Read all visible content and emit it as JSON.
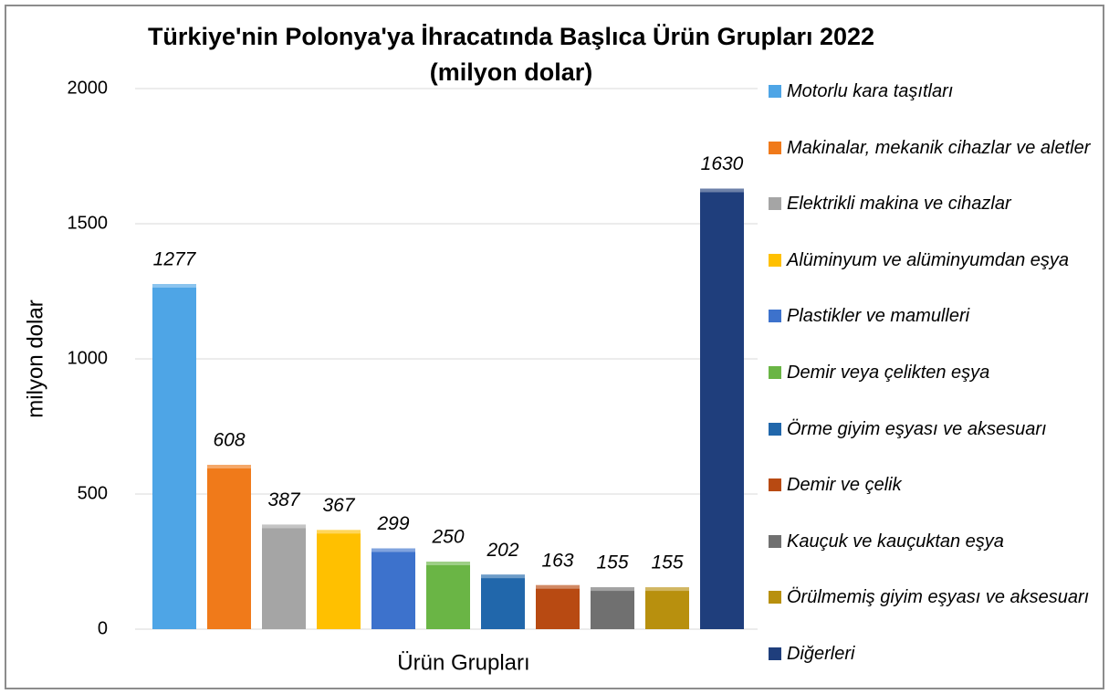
{
  "chart_data": {
    "type": "bar",
    "title": "Türkiye'nin Polonya'ya İhracatında Başlıca Ürün Grupları 2022",
    "subtitle": "(milyon dolar)",
    "y_label": "milyon dolar",
    "x_label": "Ürün Grupları",
    "categories": [
      "Motorlu kara taşıtları",
      "Makinalar, mekanik cihazlar ve aletler",
      "Elektrikli makina ve cihazlar",
      "Alüminyum ve alüminyumdan eşya",
      "Plastikler ve mamulleri",
      "Demir veya çelikten eşya",
      "Örme giyim eşyası ve aksesuarı",
      "Demir ve çelik",
      "Kauçuk ve kauçuktan eşya",
      "Örülmemiş giyim eşyası ve aksesuarı",
      "Diğerleri"
    ],
    "values": [
      1277,
      608,
      387,
      367,
      299,
      250,
      202,
      163,
      155,
      155,
      1630
    ],
    "colors": [
      "#4ea5e6",
      "#f07a1a",
      "#a5a5a5",
      "#ffc000",
      "#3d72cc",
      "#6ab545",
      "#2167ab",
      "#b84a12",
      "#707070",
      "#b8900e",
      "#1f3e7c"
    ],
    "ylim": [
      0,
      2000
    ],
    "yticks": [
      0,
      500,
      1000,
      1500,
      2000
    ],
    "grid": true,
    "legend": "right"
  }
}
